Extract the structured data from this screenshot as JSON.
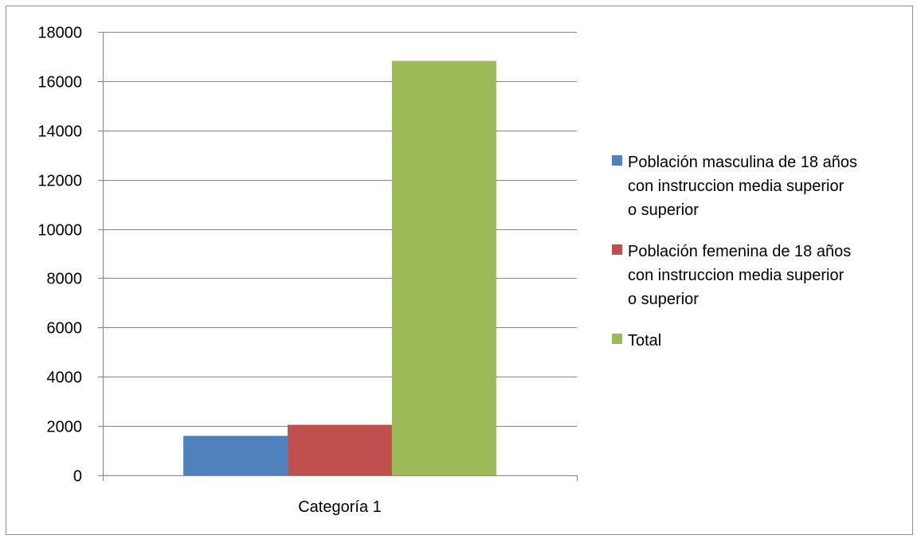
{
  "chart_data": {
    "type": "bar",
    "title": "",
    "xlabel": "",
    "ylabel": "",
    "categories": [
      "Categoría 1"
    ],
    "series": [
      {
        "name": "Población masculina de 18 años con instruccion media superior o superior",
        "legend_lines": [
          "Población masculina de 18 años",
          "con instruccion media superior",
          "o superior"
        ],
        "color": "#4f81bd",
        "values": [
          1600
        ]
      },
      {
        "name": "Población femenina de 18 años con instruccion media superior o superior",
        "legend_lines": [
          "Población femenina de 18 años",
          "con instruccion media superior",
          "o superior"
        ],
        "color": "#c0504d",
        "values": [
          2050
        ]
      },
      {
        "name": "Total",
        "legend_lines": [
          "Total"
        ],
        "color": "#9bbb59",
        "values": [
          16820
        ]
      }
    ],
    "ylim": [
      0,
      18000
    ],
    "yticks": [
      "0",
      "2000",
      "4000",
      "6000",
      "8000",
      "10000",
      "12000",
      "14000",
      "16000",
      "18000"
    ],
    "grid": true,
    "legend_position": "right"
  }
}
